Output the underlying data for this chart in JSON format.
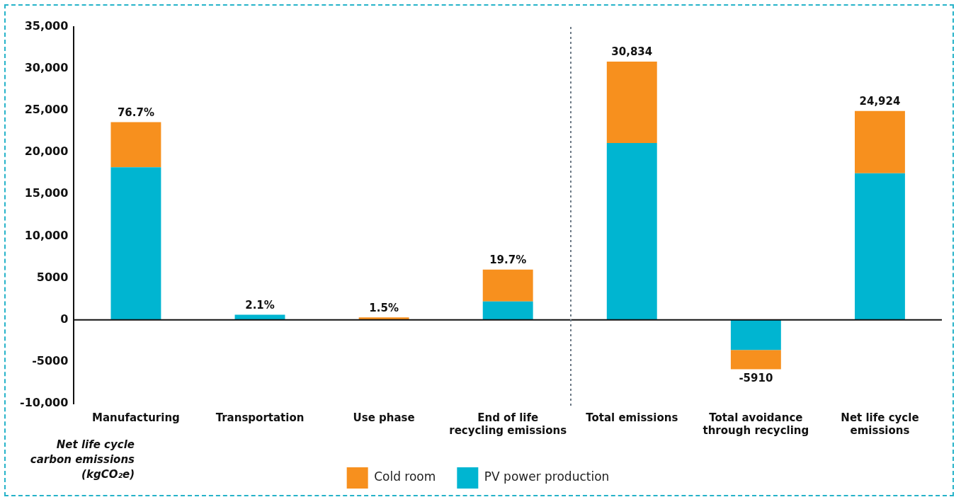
{
  "chart_data": {
    "type": "bar",
    "stacked": true,
    "categories": [
      "Manufacturing",
      "Transportation",
      "Use phase",
      "End of life recycling emissions",
      "Total emissions",
      "Total avoidance through recycling",
      "Net life cycle emissions"
    ],
    "series": [
      {
        "name": "PV power production",
        "color": "#00b5d1",
        "values": [
          18200,
          600,
          0,
          2200,
          21100,
          -3600,
          17500
        ]
      },
      {
        "name": "Cold room",
        "color": "#f7901e",
        "values": [
          5400,
          0,
          300,
          3800,
          9734,
          -2310,
          7424
        ]
      }
    ],
    "totals": [
      null,
      null,
      null,
      null,
      "30,834",
      "-5910",
      "24,924"
    ],
    "annotations": [
      {
        "text": "76.7%",
        "x": "Manufacturing",
        "y": 23600
      },
      {
        "text": "2.1%",
        "x": "Transportation",
        "y": 600
      },
      {
        "text": "1.5%",
        "x": "Use phase",
        "y": 300
      },
      {
        "text": "19.7%",
        "x": "End of life recycling emissions",
        "y": 6000
      }
    ],
    "ylabel": "Net life cycle carbon emissions (kgCO₂e)",
    "ylim": [
      -10000,
      35000
    ],
    "yticks": [
      {
        "value": -10000,
        "label": "-10,000"
      },
      -5000,
      0,
      5000,
      {
        "value": 10000,
        "label": "10,000"
      },
      {
        "value": 15000,
        "label": "15,000"
      },
      {
        "value": 20000,
        "label": "20,000"
      },
      {
        "value": 25000,
        "label": "25,000"
      },
      {
        "value": 30000,
        "label": "30,000"
      },
      {
        "value": 35000,
        "label": "35,000"
      }
    ],
    "ref_lines": [
      {
        "axis": "y",
        "value": 0,
        "color": "#111111"
      }
    ],
    "grid": false,
    "legend": "bottom"
  }
}
